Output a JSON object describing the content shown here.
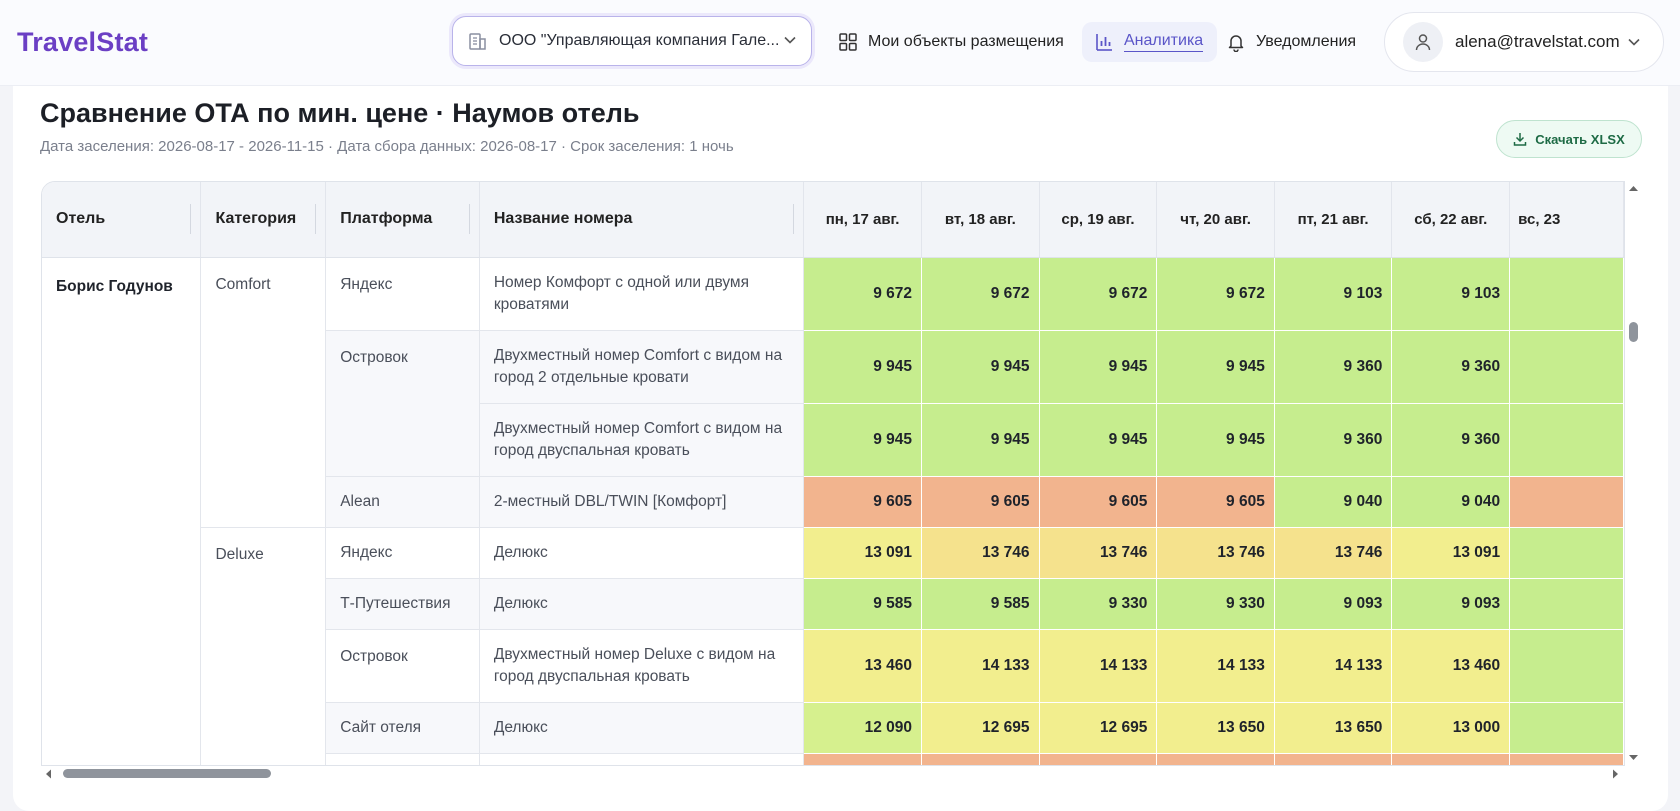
{
  "header": {
    "logo": "TravelStat",
    "company": "ООО \"Управляющая компания Гале...",
    "nav": {
      "objects": "Мои объекты размещения",
      "analytics": "Аналитика",
      "notifications": "Уведомления"
    },
    "user_email": "alena@travelstat.com"
  },
  "page": {
    "title": "Сравнение ОТА по мин. цене · Наумов отель",
    "subtitle": "Дата заселения: 2026-08-17 - 2026-11-15 · Дата сбора данных: 2026-08-17 · Срок заселения: 1 ночь",
    "download": "Скачать XLSX"
  },
  "colors": {
    "green": "#c6ed8e",
    "light_green": "#d6f08e",
    "yellow": "#f2ee8e",
    "gold": "#f5e28d",
    "orange": "#f2b48e"
  },
  "table": {
    "headers": {
      "hotel": "Отель",
      "category": "Категория",
      "platform": "Платформа",
      "room": "Название номера"
    },
    "dates": [
      "пн, 17 авг.",
      "вт, 18 авг.",
      "ср, 19 авг.",
      "чт, 20 авг.",
      "пт, 21 авг.",
      "сб, 22 авг.",
      "вс, 23"
    ],
    "hotel": "Борис Годунов",
    "categories": [
      "Comfort",
      "Deluxe"
    ],
    "platforms": [
      "Яндекс",
      "Островок",
      "Alean",
      "Яндекс",
      "Т-Путешествия",
      "Островок",
      "Сайт отеля"
    ],
    "rows": [
      {
        "room": "Номер Комфорт с одной или двумя кроватями",
        "prices": [
          "9 672",
          "9 672",
          "9 672",
          "9 672",
          "9 103",
          "9 103"
        ],
        "colors": [
          "green",
          "green",
          "green",
          "green",
          "green",
          "green",
          "green"
        ]
      },
      {
        "room": "Двухместный номер Comfort с видом на город 2 отдельные кровати",
        "prices": [
          "9 945",
          "9 945",
          "9 945",
          "9 945",
          "9 360",
          "9 360"
        ],
        "colors": [
          "green",
          "green",
          "green",
          "green",
          "green",
          "green",
          "green"
        ]
      },
      {
        "room": "Двухместный номер Comfort с видом на город двуспальная кровать",
        "prices": [
          "9 945",
          "9 945",
          "9 945",
          "9 945",
          "9 360",
          "9 360"
        ],
        "colors": [
          "green",
          "green",
          "green",
          "green",
          "green",
          "green",
          "green"
        ]
      },
      {
        "room": "2-местный DBL/TWIN [Комфорт]",
        "prices": [
          "9 605",
          "9 605",
          "9 605",
          "9 605",
          "9 040",
          "9 040"
        ],
        "colors": [
          "orange",
          "orange",
          "orange",
          "orange",
          "green",
          "green",
          "orange"
        ]
      },
      {
        "room": "Делюкс",
        "prices": [
          "13 091",
          "13 746",
          "13 746",
          "13 746",
          "13 746",
          "13 091"
        ],
        "colors": [
          "yellow",
          "gold",
          "gold",
          "gold",
          "gold",
          "yellow",
          "green"
        ]
      },
      {
        "room": "Делюкс",
        "prices": [
          "9 585",
          "9 585",
          "9 330",
          "9 330",
          "9 093",
          "9 093"
        ],
        "colors": [
          "green",
          "green",
          "green",
          "green",
          "green",
          "green",
          "green"
        ]
      },
      {
        "room": "Двухместный номер Deluxe с видом на город двуспальная кровать",
        "prices": [
          "13 460",
          "14 133",
          "14 133",
          "14 133",
          "14 133",
          "13 460"
        ],
        "colors": [
          "yellow",
          "yellow",
          "yellow",
          "yellow",
          "yellow",
          "yellow",
          "green"
        ]
      },
      {
        "room": "Делюкс",
        "prices": [
          "12 090",
          "12 695",
          "12 695",
          "13 650",
          "13 650",
          "13 000"
        ],
        "colors": [
          "light_green",
          "yellow",
          "yellow",
          "yellow",
          "yellow",
          "yellow",
          "green"
        ]
      },
      {
        "room": "",
        "prices": [
          "",
          "",
          "",
          "",
          "",
          ""
        ],
        "colors": [
          "orange",
          "orange",
          "orange",
          "orange",
          "orange",
          "orange",
          "orange"
        ]
      }
    ]
  }
}
